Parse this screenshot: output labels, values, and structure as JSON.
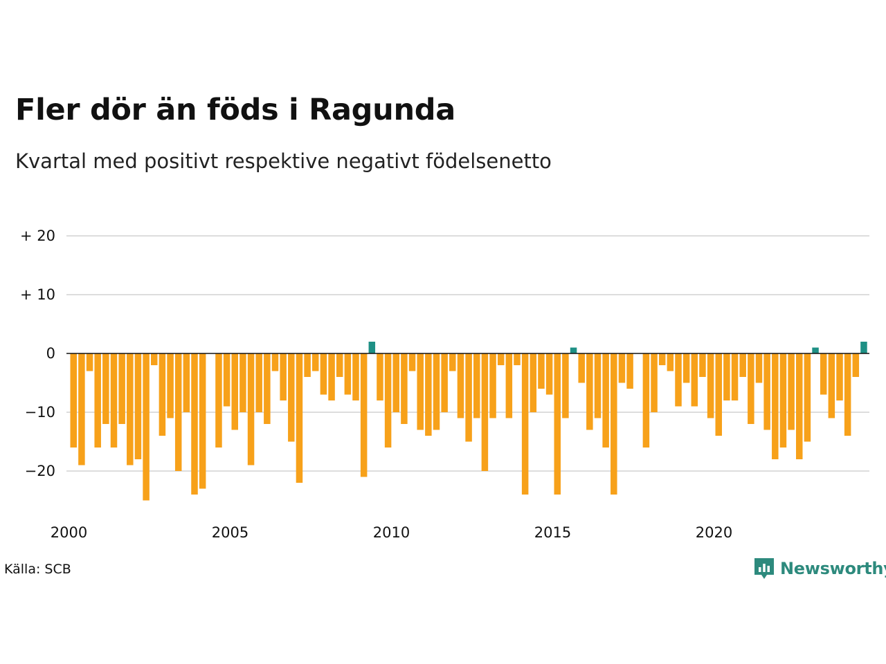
{
  "header": {
    "title": "Fler dör än föds i Ragunda",
    "subtitle": "Kvartal med positivt respektive negativt födelsenetto"
  },
  "footer": {
    "source": "Källa: SCB",
    "brand": "Newsworthy",
    "brand_icon": "newsworthy-logo-icon"
  },
  "colors": {
    "negative": "#F7A11A",
    "positive": "#1E9085",
    "grid": "#DDDDDD",
    "baseline": "#111111",
    "brand": "#2D8A7D"
  },
  "chart_data": {
    "type": "bar",
    "title": "Fler dör än föds i Ragunda",
    "subtitle": "Kvartal med positivt respektive negativt födelsenetto",
    "xlabel": "",
    "ylabel": "",
    "ylim": [
      -27,
      21
    ],
    "y_ticks": [
      20,
      10,
      0,
      -10,
      -20
    ],
    "y_tick_labels": [
      "+ 20",
      "+ 10",
      "0",
      "−10",
      "−20"
    ],
    "x_ticks": [
      2000,
      2005,
      2010,
      2015,
      2020
    ],
    "x_tick_labels": [
      "2000",
      "2005",
      "2010",
      "2015",
      "2020"
    ],
    "grid": true,
    "x_start": "2000 Q1",
    "frequency": "quarterly",
    "values": [
      -16,
      -19,
      -3,
      -16,
      -12,
      -16,
      -12,
      -19,
      -18,
      -25,
      -2,
      -14,
      -11,
      -20,
      -10,
      -24,
      -23,
      0,
      -16,
      -9,
      -13,
      -10,
      -19,
      -10,
      -12,
      -3,
      -8,
      -15,
      -22,
      -4,
      -3,
      -7,
      -8,
      -4,
      -7,
      -8,
      -21,
      2,
      -8,
      -16,
      -10,
      -12,
      -3,
      -13,
      -14,
      -13,
      -10,
      -3,
      -11,
      -15,
      -11,
      -20,
      -11,
      -2,
      -11,
      -2,
      -24,
      -10,
      -6,
      -7,
      -24,
      -11,
      1,
      -5,
      -13,
      -11,
      -16,
      -24,
      -5,
      -6,
      0,
      -16,
      -10,
      -2,
      -3,
      -9,
      -5,
      -9,
      -4,
      -11,
      -14,
      -8,
      -8,
      -4,
      -12,
      -5,
      -13,
      -18,
      -16,
      -13,
      -18,
      -15,
      1,
      -7,
      -11,
      -8,
      -14,
      -4,
      2
    ]
  }
}
